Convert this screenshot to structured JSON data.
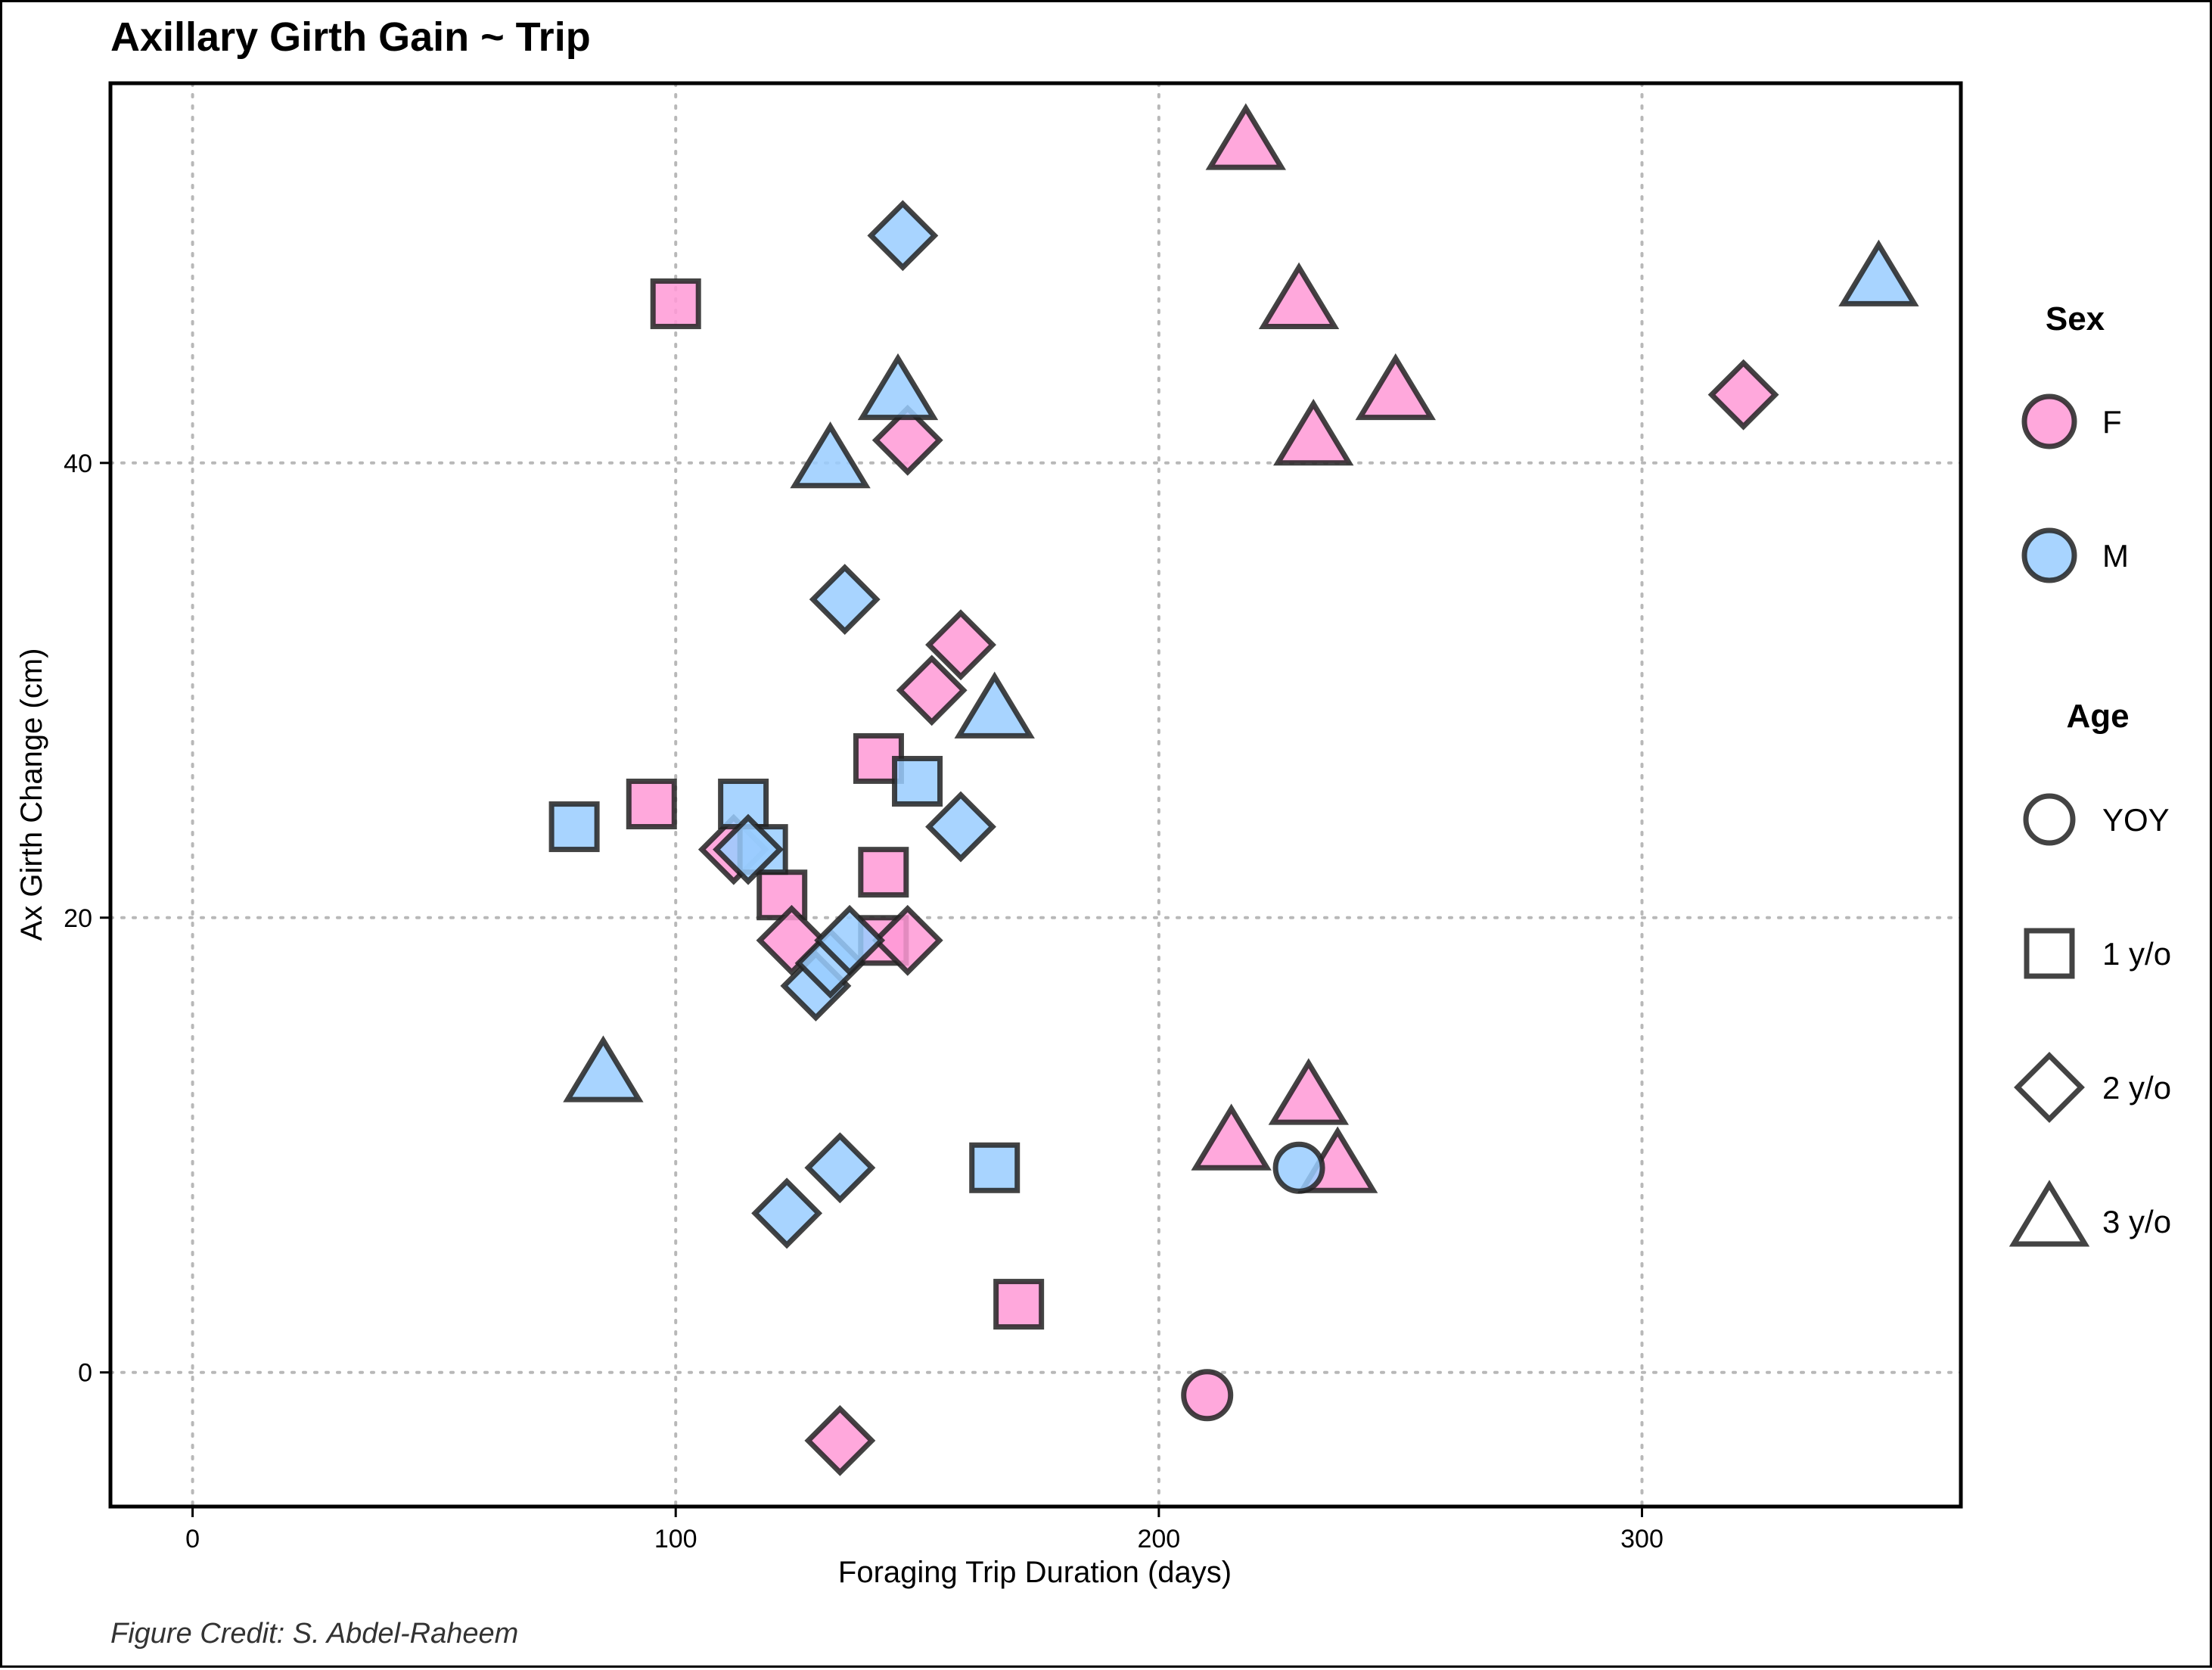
{
  "chart_data": {
    "type": "scatter",
    "title": "Axillary Girth Gain ~ Trip",
    "xlabel": "Foraging Trip Duration (days)",
    "ylabel": "Ax Girth Change (cm)",
    "xlim": [
      -17,
      366
    ],
    "ylim": [
      -5.9,
      56.7
    ],
    "xticks": [
      0,
      100,
      200,
      300
    ],
    "yticks": [
      0,
      20,
      40
    ],
    "grid": true,
    "caption": "Figure Credit: S. Abdel-Raheem",
    "legend": {
      "placement": "right",
      "color": {
        "title": "Sex",
        "entries": [
          {
            "label": "F",
            "color": "#ff99d6"
          },
          {
            "label": "M",
            "color": "#99ccff"
          }
        ]
      },
      "shape": {
        "title": "Age",
        "entries": [
          {
            "label": "YOY",
            "shape": "circle"
          },
          {
            "label": "1 y/o",
            "shape": "square"
          },
          {
            "label": "2 y/o",
            "shape": "diamond"
          },
          {
            "label": "3 y/o",
            "shape": "triangle"
          }
        ]
      }
    },
    "points": [
      {
        "x": 100,
        "y": 47,
        "sex": "F",
        "age": "1 y/o"
      },
      {
        "x": 95,
        "y": 25,
        "sex": "F",
        "age": "1 y/o"
      },
      {
        "x": 122,
        "y": 21,
        "sex": "F",
        "age": "1 y/o"
      },
      {
        "x": 142,
        "y": 27,
        "sex": "F",
        "age": "1 y/o"
      },
      {
        "x": 143,
        "y": 19,
        "sex": "F",
        "age": "1 y/o"
      },
      {
        "x": 143,
        "y": 22,
        "sex": "F",
        "age": "1 y/o"
      },
      {
        "x": 171,
        "y": 3,
        "sex": "F",
        "age": "1 y/o"
      },
      {
        "x": 112,
        "y": 23,
        "sex": "F",
        "age": "2 y/o"
      },
      {
        "x": 124,
        "y": 19,
        "sex": "F",
        "age": "2 y/o"
      },
      {
        "x": 148,
        "y": 19,
        "sex": "F",
        "age": "2 y/o"
      },
      {
        "x": 148,
        "y": 41,
        "sex": "F",
        "age": "2 y/o"
      },
      {
        "x": 153,
        "y": 30,
        "sex": "F",
        "age": "2 y/o"
      },
      {
        "x": 159,
        "y": 32,
        "sex": "F",
        "age": "2 y/o"
      },
      {
        "x": 134,
        "y": -3,
        "sex": "F",
        "age": "2 y/o"
      },
      {
        "x": 321,
        "y": 43,
        "sex": "F",
        "age": "2 y/o"
      },
      {
        "x": 210,
        "y": -1,
        "sex": "F",
        "age": "YOY"
      },
      {
        "x": 218,
        "y": 54,
        "sex": "F",
        "age": "3 y/o"
      },
      {
        "x": 229,
        "y": 47,
        "sex": "F",
        "age": "3 y/o"
      },
      {
        "x": 232,
        "y": 41,
        "sex": "F",
        "age": "3 y/o"
      },
      {
        "x": 249,
        "y": 43,
        "sex": "F",
        "age": "3 y/o"
      },
      {
        "x": 215,
        "y": 10,
        "sex": "F",
        "age": "3 y/o"
      },
      {
        "x": 231,
        "y": 12,
        "sex": "F",
        "age": "3 y/o"
      },
      {
        "x": 237,
        "y": 9,
        "sex": "F",
        "age": "3 y/o"
      },
      {
        "x": 79,
        "y": 24,
        "sex": "M",
        "age": "1 y/o"
      },
      {
        "x": 114,
        "y": 25,
        "sex": "M",
        "age": "1 y/o"
      },
      {
        "x": 118,
        "y": 23,
        "sex": "M",
        "age": "1 y/o"
      },
      {
        "x": 150,
        "y": 26,
        "sex": "M",
        "age": "1 y/o"
      },
      {
        "x": 166,
        "y": 9,
        "sex": "M",
        "age": "1 y/o"
      },
      {
        "x": 147,
        "y": 50,
        "sex": "M",
        "age": "2 y/o"
      },
      {
        "x": 135,
        "y": 34,
        "sex": "M",
        "age": "2 y/o"
      },
      {
        "x": 159,
        "y": 24,
        "sex": "M",
        "age": "2 y/o"
      },
      {
        "x": 115,
        "y": 23,
        "sex": "M",
        "age": "2 y/o"
      },
      {
        "x": 129,
        "y": 17,
        "sex": "M",
        "age": "2 y/o"
      },
      {
        "x": 132,
        "y": 18,
        "sex": "M",
        "age": "2 y/o"
      },
      {
        "x": 136,
        "y": 19,
        "sex": "M",
        "age": "2 y/o"
      },
      {
        "x": 134,
        "y": 9,
        "sex": "M",
        "age": "2 y/o"
      },
      {
        "x": 123,
        "y": 7,
        "sex": "M",
        "age": "2 y/o"
      },
      {
        "x": 229,
        "y": 9,
        "sex": "M",
        "age": "YOY"
      },
      {
        "x": 146,
        "y": 43,
        "sex": "M",
        "age": "3 y/o"
      },
      {
        "x": 132,
        "y": 40,
        "sex": "M",
        "age": "3 y/o"
      },
      {
        "x": 166,
        "y": 29,
        "sex": "M",
        "age": "3 y/o"
      },
      {
        "x": 85,
        "y": 13,
        "sex": "M",
        "age": "3 y/o"
      },
      {
        "x": 349,
        "y": 48,
        "sex": "M",
        "age": "3 y/o"
      }
    ]
  }
}
